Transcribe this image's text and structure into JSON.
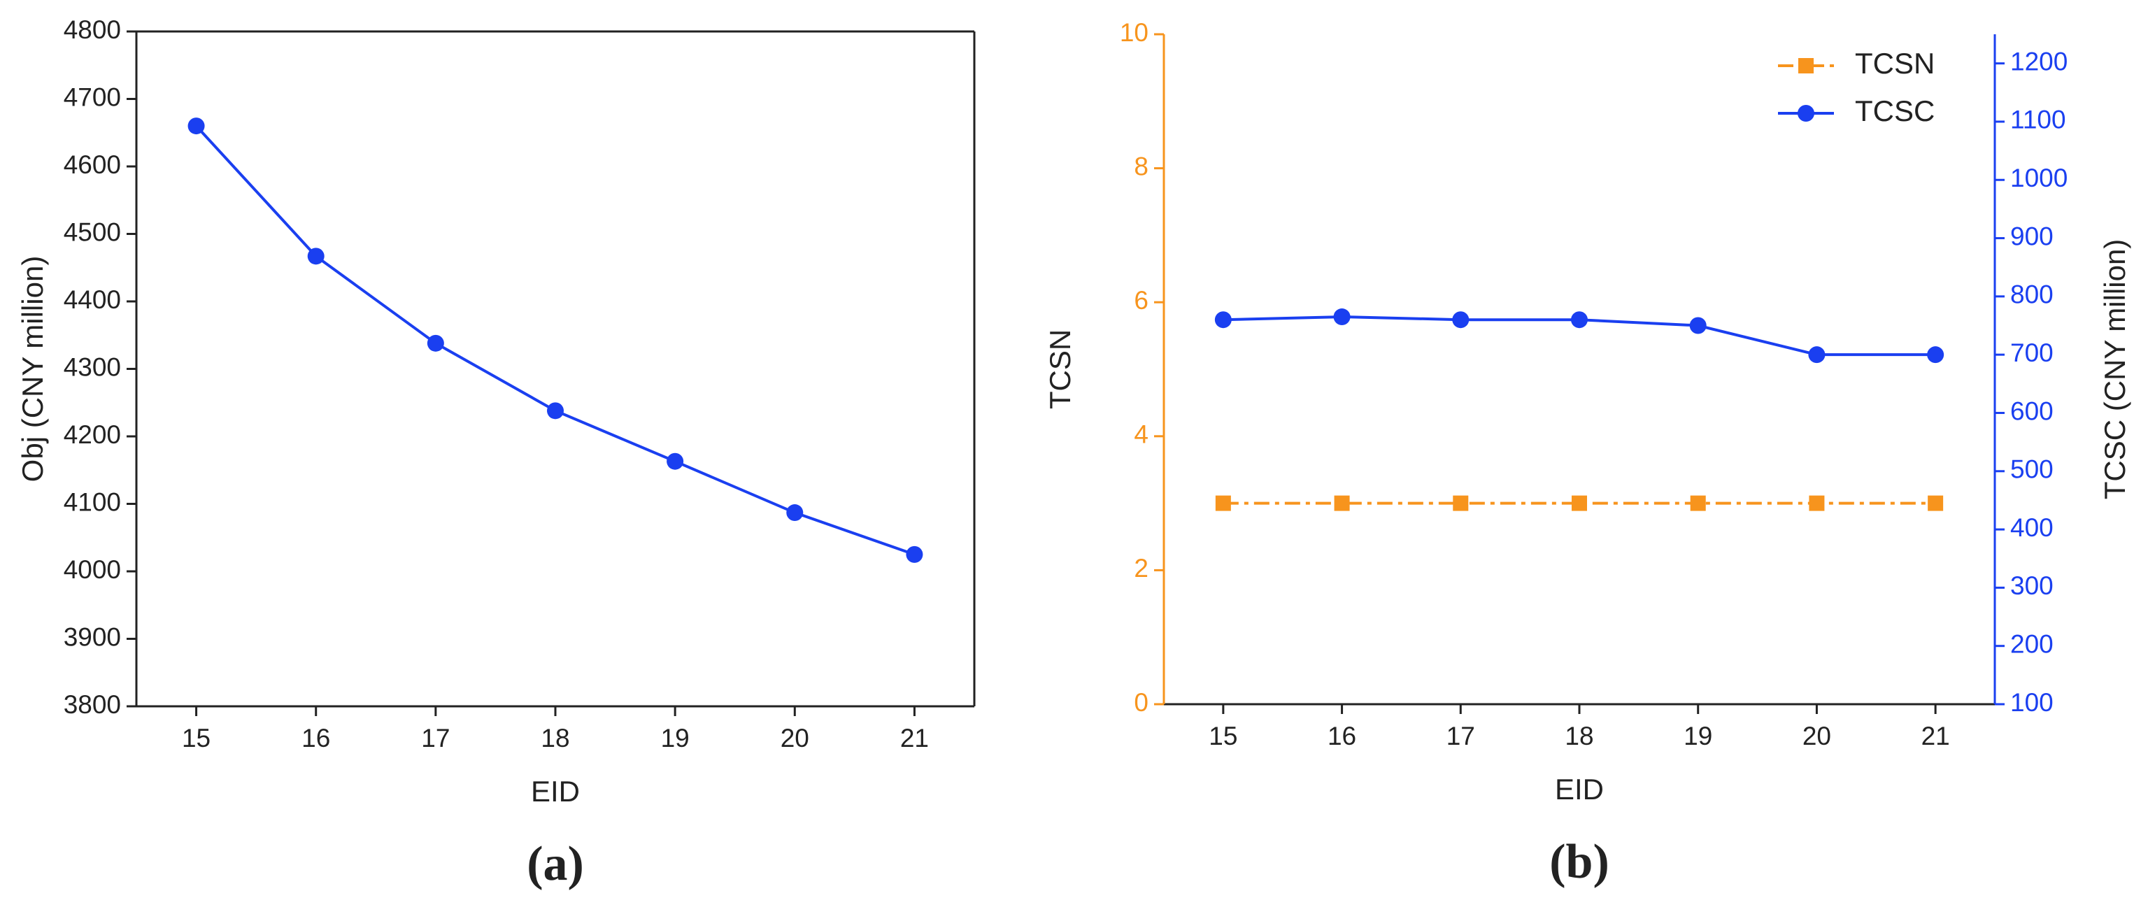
{
  "chart_data": [
    {
      "type": "line",
      "label": "(a)",
      "xlabel": "EID",
      "ylabel": "Obj (CNY million)",
      "x": [
        15,
        16,
        17,
        18,
        19,
        20,
        21
      ],
      "xlim": [
        14.5,
        21.5
      ],
      "xticks": [
        15,
        16,
        17,
        18,
        19,
        20,
        21
      ],
      "ylim": [
        3800,
        4800
      ],
      "yticks": [
        3800,
        3900,
        4000,
        4100,
        4200,
        4300,
        4400,
        4500,
        4600,
        4700,
        4800
      ],
      "frame": true,
      "series": [
        {
          "color": "#1a3ff0",
          "marker": "circle",
          "linestyle": "solid",
          "values": [
            4660,
            4467,
            4338,
            4238,
            4163,
            4087,
            4025
          ]
        }
      ]
    },
    {
      "type": "line",
      "label": "(b)",
      "xlabel": "EID",
      "ylabel": "TCSN",
      "y2label": "TCSC (CNY million)",
      "x": [
        15,
        16,
        17,
        18,
        19,
        20,
        21
      ],
      "xlim": [
        14.5,
        21.5
      ],
      "xticks": [
        15,
        16,
        17,
        18,
        19,
        20,
        21
      ],
      "ylim": [
        0,
        10
      ],
      "yticks": [
        0,
        2,
        4,
        6,
        8,
        10
      ],
      "ycolor": "#f7941d",
      "y2lim": [
        100,
        1250
      ],
      "y2ticks": [
        100,
        200,
        300,
        400,
        500,
        600,
        700,
        800,
        900,
        1000,
        1100,
        1200
      ],
      "y2color": "#1a3ff0",
      "frame": false,
      "legend": "upper right",
      "series": [
        {
          "name": "TCSN",
          "color": "#f7941d",
          "marker": "square",
          "linestyle": "dashdot",
          "values": [
            3,
            3,
            3,
            3,
            3,
            3,
            3
          ]
        },
        {
          "name": "TCSC",
          "color": "#1a3ff0",
          "marker": "circle",
          "linestyle": "solid",
          "axis": "y2",
          "values": [
            760,
            765,
            760,
            760,
            750,
            700,
            700
          ]
        }
      ]
    }
  ]
}
